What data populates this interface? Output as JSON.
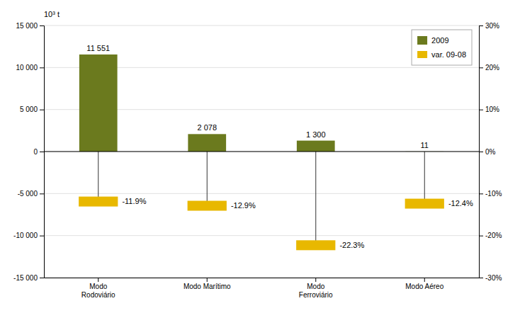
{
  "chart_data": {
    "type": "bar",
    "ylabel": "10³ t",
    "categories": [
      "Modo\nRodoviário",
      "Modo Marítimo",
      "Modo\nFerroviário",
      "Modo Aéreo"
    ],
    "series": [
      {
        "name": "2009",
        "type": "bar",
        "color": "#6b7a1e",
        "values": [
          11551,
          2078,
          1300,
          11
        ],
        "value_labels": [
          "11 551",
          "2 078",
          "1 300",
          "11"
        ]
      },
      {
        "name": "var. 09-08",
        "type": "scatter",
        "marker": "square",
        "axis": "y2",
        "color": "#e8b800",
        "values": [
          -11.9,
          -12.9,
          -22.3,
          -12.4
        ],
        "value_labels": [
          "-11.9%",
          "-12.9%",
          "-22.3%",
          "-12.4%"
        ]
      }
    ],
    "ylim": [
      -15000,
      15000
    ],
    "yticks": [
      {
        "value": -15000,
        "label": "-15 000"
      },
      {
        "value": -10000,
        "label": "-10 000"
      },
      {
        "value": -5000,
        "label": "-5 000"
      },
      0,
      {
        "value": 5000,
        "label": "5 000"
      },
      {
        "value": 10000,
        "label": "10 000"
      },
      {
        "value": 15000,
        "label": "15 000"
      }
    ],
    "y2lim": [
      -30,
      30
    ],
    "y2ticks": [
      {
        "value": -30,
        "label": "-30%"
      },
      {
        "value": -20,
        "label": "-20%"
      },
      {
        "value": -10,
        "label": "-10%"
      },
      {
        "value": 0,
        "label": "0%"
      },
      {
        "value": 10,
        "label": "10%"
      },
      {
        "value": 20,
        "label": "20%"
      },
      {
        "value": 30,
        "label": "30%"
      }
    ],
    "grid": true,
    "legend": "upper right",
    "data_labels": true
  }
}
